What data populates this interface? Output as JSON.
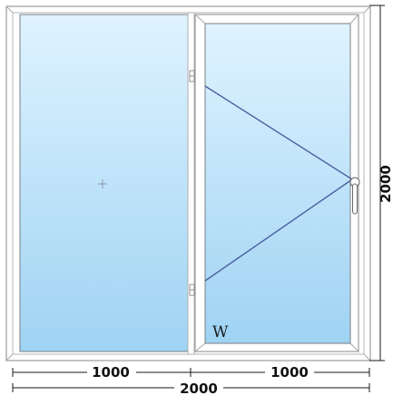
{
  "panes": [
    {
      "id": "left",
      "type": "fixed",
      "width_mm": 1000,
      "fixed_marker": "+"
    },
    {
      "id": "right",
      "type": "turn",
      "width_mm": 1000,
      "hinge_side": "left",
      "handle_side": "right",
      "label": "W"
    }
  ],
  "dimensions": {
    "left_width": "1000",
    "right_width": "1000",
    "total_width": "2000",
    "total_height": "2000"
  },
  "colors": {
    "glass_top": "#dff3ff",
    "glass_bottom": "#9fd3f3",
    "frame": "#ffffff",
    "opening_lines": "#4b5fa0"
  }
}
